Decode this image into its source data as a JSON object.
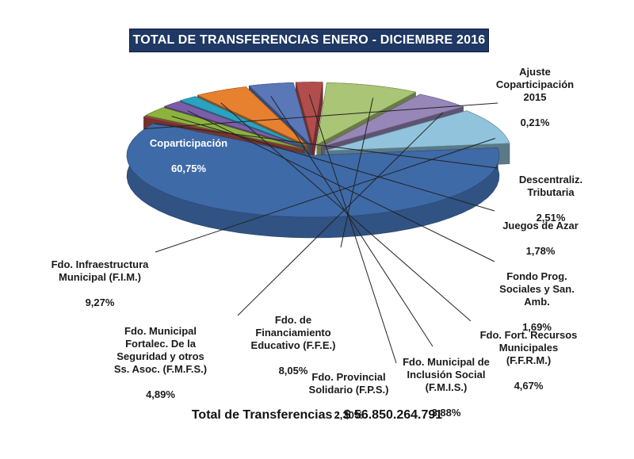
{
  "title": "TOTAL DE TRANSFERENCIAS ENERO -  DICIEMBRE 2016",
  "total": "Total de Transferencias : $ 56.850.264.791",
  "chart_data": {
    "type": "pie",
    "title": "TOTAL DE TRANSFERENCIAS ENERO -  DICIEMBRE 2016",
    "unit": "%",
    "slices": [
      {
        "name": "Coparticipación",
        "value": 60.75,
        "pct_label": "60,75%",
        "color": "#3f6aa8"
      },
      {
        "name": "Ajuste\nCoparticipación\n2015",
        "value": 0.21,
        "pct_label": "0,21%",
        "color": "#c0504d"
      },
      {
        "name": "Descentraliz.\nTributaria",
        "value": 2.51,
        "pct_label": "2,51%",
        "color": "#8db33e"
      },
      {
        "name": "Juegos de Azar",
        "value": 1.78,
        "pct_label": "1,78%",
        "color": "#7b5ea7"
      },
      {
        "name": "Fondo Prog.\nSociales y San.\nAmb.",
        "value": 1.69,
        "pct_label": "1,69%",
        "color": "#2aa3c0"
      },
      {
        "name": "Fdo. Fort. Recursos\nMunicipales\n(F.F.R.M.)",
        "value": 4.67,
        "pct_label": "4,67%",
        "color": "#e8812f"
      },
      {
        "name": "Fdo.  Municipal de\nInclusión Social\n(F.M.I.S.)",
        "value": 3.88,
        "pct_label": "3,88%",
        "color": "#5a78b8"
      },
      {
        "name": "Fdo.  Provincial\nSolidario (F.P.S.)",
        "value": 2.3,
        "pct_label": "2,30%",
        "color": "#b24d4d"
      },
      {
        "name": "Fdo. de\nFinanciamiento\nEducativo (F.F.E.)",
        "value": 8.05,
        "pct_label": "8,05%",
        "color": "#a9c575"
      },
      {
        "name": "Fdo. Municipal\nFortalec. De la\nSeguridad y otros\nSs. Asoc. (F.M.F.S.)",
        "value": 4.89,
        "pct_label": "4,89%",
        "color": "#9787b8"
      },
      {
        "name": "Fdo. Infraestructura\nMunicipal (F.I.M.)",
        "value": 9.27,
        "pct_label": "9,27%",
        "color": "#91c4dc"
      }
    ]
  }
}
